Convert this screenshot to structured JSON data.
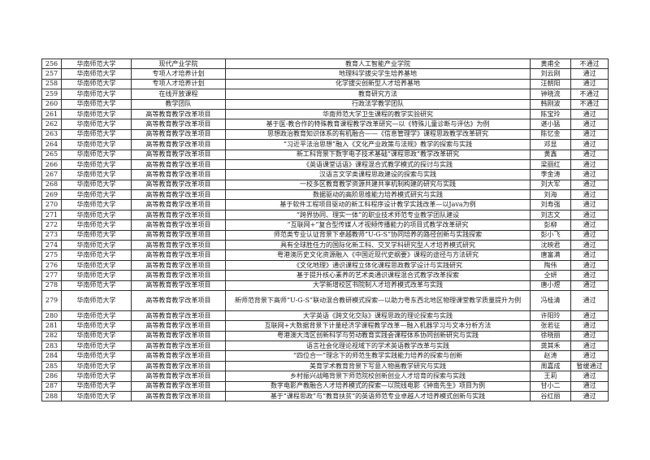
{
  "rows": [
    [
      "256",
      "华南师范大学",
      "现代产业学院",
      "教育人工智能产业学院",
      "黄甫全",
      "不通过"
    ],
    [
      "257",
      "华南师范大学",
      "专项人才培养计划",
      "地理科学拔尖学生培养基地",
      "刘云刚",
      "通过"
    ],
    [
      "258",
      "华南师范大学",
      "专项人才培养计划",
      "化学拔尖创新型人才培养基地",
      "汪朝阳",
      "通过"
    ],
    [
      "259",
      "华南师范大学",
      "在线开放课程",
      "教育研究方法",
      "钟晓流",
      "不通过"
    ],
    [
      "260",
      "华南师范大学",
      "教学团队",
      "行政法学教学团队",
      "韩刚波",
      "不通过"
    ],
    [
      "261",
      "华南师范大学",
      "高等教育教学改革项目",
      "华南师范大学卫生课程的教学实验研究",
      "陈宝玲",
      "通过"
    ],
    [
      "262",
      "华南师范大学",
      "高等教育教学改革项目",
      "基于医-教合作的特殊教育课程教学改革研究—以《特殊儿童诊断与评估》为例",
      "谌小猛",
      "通过"
    ],
    [
      "263",
      "华南师范大学",
      "高等教育教学改革项目",
      "思想政治教育知识体系的有机融合——《信息管理学》课程思政教学改革研究",
      "陈忆金",
      "通过"
    ],
    [
      "264",
      "华南师范大学",
      "高等教育教学改革项目",
      "“习近平法治思想”融入《文化产业政策与法规》教学的探索与实践",
      "邓显",
      "通过"
    ],
    [
      "265",
      "华南师范大学",
      "高等教育教学改革项目",
      "新工科背景下数字电子技术基础“课程思政”教学改革研究",
      "黄鑫",
      "通过"
    ],
    [
      "266",
      "华南师范大学",
      "高等教育教学改革项目",
      "《英语课堂话语》课程混合式教学模式的探讨与实践",
      "梁丽红",
      "通过"
    ],
    [
      "267",
      "华南师范大学",
      "高等教育教学改革项目",
      "汉语言文学类课程思政建设的探索与实践",
      "李金涛",
      "通过"
    ],
    [
      "268",
      "华南师范大学",
      "高等教育教学改革项目",
      "一校多区教育教学资源共建共享机制构建的研究与实践",
      "刘大军",
      "通过"
    ],
    [
      "269",
      "华南师范大学",
      "高等教育教学改革项目",
      "数据驱动的高阶思维能力培养模式研究与实践",
      "刘海",
      "通过"
    ],
    [
      "270",
      "华南师范大学",
      "高等教育教学改革项目",
      "基于软件工程项目驱动的新工科程序设计教学实践改革—以Java为例",
      "刘寿强",
      "通过"
    ],
    [
      "271",
      "华南师范大学",
      "高等教育教学改革项目",
      "“跨界协同、理实一体”的职业技术师范专业教学团队建设",
      "刘志文",
      "通过"
    ],
    [
      "272",
      "华南师范大学",
      "高等教育教学改革项目",
      "“互联网+”复合型传媒人才视频传播能力的项目式教学改革研究",
      "彭柳",
      "通过"
    ],
    [
      "273",
      "华南师范大学",
      "高等教育教学改革项目",
      "师范类专业认证背景下卓越教师“U-G-S”协同培养的路径创新与实践探索",
      "彭小飞",
      "通过"
    ],
    [
      "274",
      "华南师范大学",
      "高等教育教学改革项目",
      "具有全球胜任力的国际化新工科、交叉学科研究型人才培养模式研究",
      "沈映君",
      "通过"
    ],
    [
      "275",
      "华南师范大学",
      "高等教育教学改革项目",
      "粤港澳历史文化资源融入《中国近现代史纲要》课程的途径与方法研究",
      "唐富满",
      "通过"
    ],
    [
      "276",
      "华南师范大学",
      "高等教育教学改革项目",
      "《文化地理》通识课程立体化课程思政教学设计与实践研究",
      "陶伟",
      "通过"
    ],
    [
      "277",
      "华南师范大学",
      "高等教育教学改革项目",
      "基于提升核心素养的艺术类通识课程混合式教学改革探索",
      "仝妍",
      "通过"
    ],
    [
      "278",
      "华南师范大学",
      "高等教育教学改革项目",
      "大学新增校区书院制人才培养模式改革与实践",
      "唐小煜",
      "通过"
    ],
    [
      "279",
      "华南师范大学",
      "高等教育教学改革项目",
      "新师范背景下高师“U-G-S”联动混合教研模式探索—以助力粤东西北地区物理课堂教学质量提升为例",
      "冯桂清",
      "通过"
    ],
    [
      "280",
      "华南师范大学",
      "高等教育教学改革项目",
      "大学英语《跨文化交际》课程思政的理论探索与实践",
      "许阳玲",
      "通过"
    ],
    [
      "281",
      "华南师范大学",
      "高等教育教学改革项目",
      "互联网+大数据背景下计量经济学课程教学改革—融入机器学习与文本分析方法",
      "张若征",
      "通过"
    ],
    [
      "282",
      "华南师范大学",
      "高等教育教学改革项目",
      "粤港澳大湾区创新科学与劳动教育实践会课程体系协同创新研究与实践",
      "徐晓丽",
      "通过"
    ],
    [
      "283",
      "华南师范大学",
      "高等教育教学改革项目",
      "语言社会化理论视域下的学术英语教学改革与实践",
      "龚其禾",
      "通过"
    ],
    [
      "284",
      "华南师范大学",
      "高等教育教学改革项目",
      "“四位合一”理念下的师范生教学实践能力培养的探索与创新",
      "赵涛",
      "通过"
    ],
    [
      "285",
      "华南师范大学",
      "高等教育教学改革项目",
      "美育学术教育背景下写意人物画教学研究与实践",
      "周嘉成",
      "暂缓通过"
    ],
    [
      "286",
      "华南师范大学",
      "高等教育教学改革项目",
      "乡村振兴战略背景下师范院校创新创业人才培育的探索与实践",
      "王莉",
      "通过"
    ],
    [
      "287",
      "华南师范大学",
      "高等教育教学改革项目",
      "数字电影产教融合人才培养模式的探索—以院线电影《钟南先生》项目为例",
      "甘小二",
      "通过"
    ],
    [
      "288",
      "华南师范大学",
      "高等教育教学改革项目",
      "基于“课程思政”与“教育扶贫”的英语师范专业卓越人才培养模式创新与实践",
      "谷红丽",
      "通过"
    ]
  ]
}
